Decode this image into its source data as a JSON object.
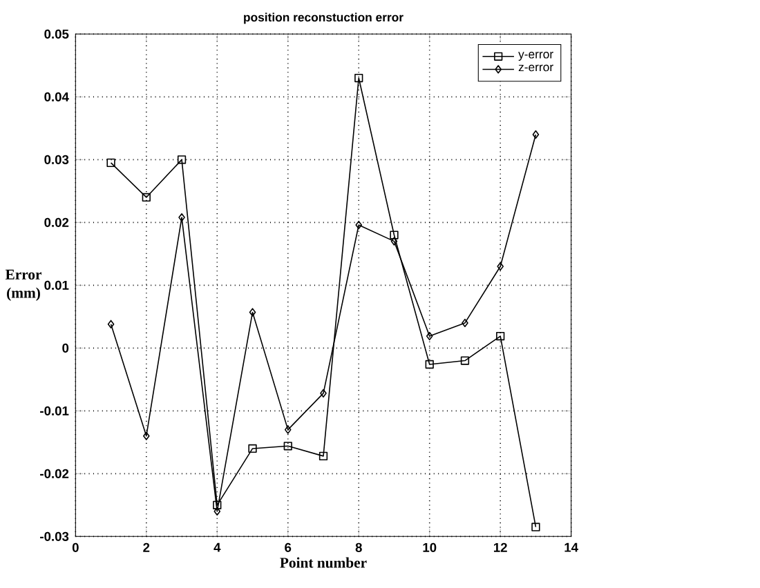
{
  "chart_data": {
    "type": "line",
    "title": "position reconstuction error",
    "xlabel": "Point number",
    "ylabel": "Error (mm)",
    "x": [
      1,
      2,
      3,
      4,
      5,
      6,
      7,
      8,
      9,
      10,
      11,
      12,
      13
    ],
    "series": [
      {
        "name": "y-error",
        "color": "#000000",
        "marker": "square",
        "values": [
          0.0295,
          0.024,
          0.03,
          -0.025,
          -0.016,
          -0.0156,
          -0.0172,
          0.043,
          0.018,
          -0.0026,
          -0.002,
          0.0019,
          -0.0285
        ]
      },
      {
        "name": "z-error",
        "color": "#000000",
        "marker": "diamond",
        "values": [
          0.0038,
          -0.014,
          0.0208,
          -0.026,
          0.0057,
          -0.013,
          -0.0072,
          0.0196,
          0.017,
          0.0019,
          0.004,
          0.013,
          0.034
        ]
      }
    ],
    "xlim": [
      0,
      14
    ],
    "xticks": [
      0,
      2,
      4,
      6,
      8,
      10,
      12,
      14
    ],
    "ylim": [
      -0.03,
      0.05
    ],
    "yticks": [
      -0.03,
      -0.02,
      -0.01,
      0,
      0.01,
      0.02,
      0.03,
      0.04,
      0.05
    ],
    "grid": true,
    "legend": "top right",
    "line_style": "solid"
  }
}
